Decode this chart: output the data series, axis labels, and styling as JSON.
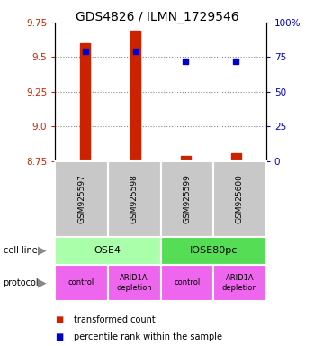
{
  "title": "GDS4826 / ILMN_1729546",
  "samples": [
    "GSM925597",
    "GSM925598",
    "GSM925599",
    "GSM925600"
  ],
  "transformed_counts": [
    9.6,
    9.69,
    8.785,
    8.805
  ],
  "percentile_ranks": [
    79,
    79,
    72,
    72
  ],
  "ylim_left": [
    8.75,
    9.75
  ],
  "ylim_right": [
    0,
    100
  ],
  "yticks_left": [
    8.75,
    9.0,
    9.25,
    9.5,
    9.75
  ],
  "yticks_right": [
    0,
    25,
    50,
    75,
    100
  ],
  "ytick_labels_right": [
    "0",
    "25",
    "50",
    "75",
    "100%"
  ],
  "bar_color": "#cc2200",
  "dot_color": "#0000cc",
  "left_tick_color": "#cc2200",
  "right_tick_color": "#0000cc",
  "sample_box_color": "#c8c8c8",
  "cell_line_groups": [
    {
      "name": "OSE4",
      "cols": [
        0,
        1
      ],
      "color": "#aaffaa"
    },
    {
      "name": "IOSE80pc",
      "cols": [
        2,
        3
      ],
      "color": "#55dd55"
    }
  ],
  "protocols": [
    "control",
    "ARID1A\ndepletion",
    "control",
    "ARID1A\ndepletion"
  ],
  "protocol_color": "#ee66ee"
}
